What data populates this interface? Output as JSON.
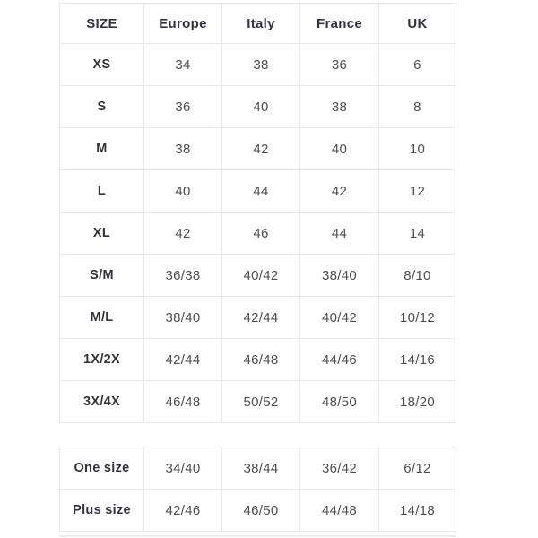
{
  "colors": {
    "background": "#ffffff",
    "border": "#e9e9e9",
    "header_text": "#33333f",
    "label_text": "#33333f",
    "value_text": "#4f4f4f"
  },
  "size_table": {
    "columns": [
      "SIZE",
      "Europe",
      "Italy",
      "France",
      "UK"
    ],
    "rows": [
      {
        "label": "XS",
        "values": [
          "34",
          "38",
          "36",
          "6"
        ]
      },
      {
        "label": "S",
        "values": [
          "36",
          "40",
          "38",
          "8"
        ]
      },
      {
        "label": "M",
        "values": [
          "38",
          "42",
          "40",
          "10"
        ]
      },
      {
        "label": "L",
        "values": [
          "40",
          "44",
          "42",
          "12"
        ]
      },
      {
        "label": "XL",
        "values": [
          "42",
          "46",
          "44",
          "14"
        ]
      },
      {
        "label": "S/M",
        "values": [
          "36/38",
          "40/42",
          "38/40",
          "8/10"
        ]
      },
      {
        "label": "M/L",
        "values": [
          "38/40",
          "42/44",
          "40/42",
          "10/12"
        ]
      },
      {
        "label": "1X/2X",
        "values": [
          "42/44",
          "46/48",
          "44/46",
          "14/16"
        ]
      },
      {
        "label": "3X/4X",
        "values": [
          "46/48",
          "50/52",
          "48/50",
          "18/20"
        ]
      }
    ]
  },
  "special_size_table": {
    "rows": [
      {
        "label": "One size",
        "values": [
          "34/40",
          "38/44",
          "36/42",
          "6/12"
        ]
      },
      {
        "label": "Plus size",
        "values": [
          "42/46",
          "46/50",
          "44/48",
          "14/18"
        ]
      }
    ]
  }
}
